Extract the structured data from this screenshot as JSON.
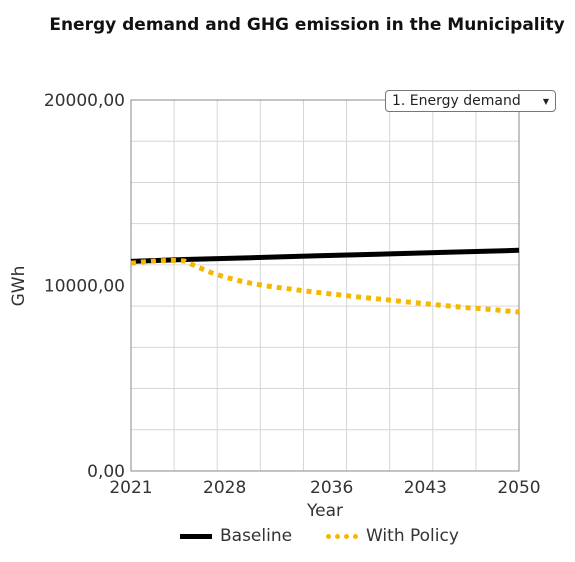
{
  "selector": {
    "label": "1. Energy demand"
  },
  "chart_data": {
    "type": "line",
    "title": "Energy demand and GHG emission in the Municipality",
    "xlabel": "Year",
    "ylabel": "GWh",
    "xlim": [
      2021,
      2050
    ],
    "ylim": [
      0,
      20000
    ],
    "x_ticks": [
      "2021",
      "2028",
      "2036",
      "2043",
      "2050"
    ],
    "y_ticks": [
      "0,00",
      "10000,00",
      "20000,00"
    ],
    "grid": true,
    "legend_position": "bottom",
    "series": [
      {
        "name": "Baseline",
        "color": "#000000",
        "style": "solid",
        "x": [
          2021,
          2025,
          2030,
          2035,
          2040,
          2045,
          2050
        ],
        "y": [
          11300,
          11400,
          11500,
          11600,
          11700,
          11800,
          11900
        ]
      },
      {
        "name": "With Policy",
        "color": "#f5b800",
        "style": "dotted",
        "x": [
          2021,
          2022,
          2023,
          2024,
          2025,
          2026,
          2027,
          2028,
          2029,
          2030,
          2031,
          2032,
          2033,
          2034,
          2035,
          2036,
          2037,
          2038,
          2039,
          2040,
          2041,
          2042,
          2043,
          2044,
          2045,
          2046,
          2047,
          2048,
          2049,
          2050
        ],
        "y": [
          11200,
          11280,
          11330,
          11350,
          11320,
          10990,
          10690,
          10460,
          10270,
          10120,
          9990,
          9890,
          9800,
          9710,
          9620,
          9540,
          9460,
          9380,
          9310,
          9240,
          9160,
          9090,
          9020,
          8950,
          8880,
          8810,
          8760,
          8700,
          8630,
          8570
        ]
      }
    ]
  }
}
